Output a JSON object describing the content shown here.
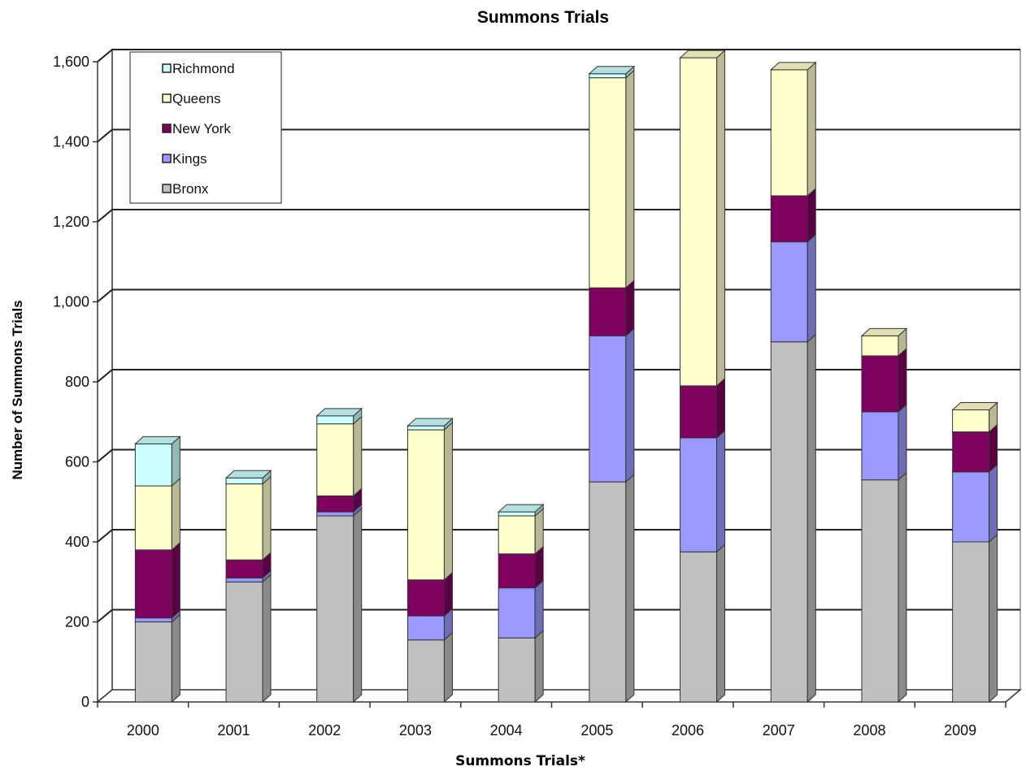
{
  "chart_data": {
    "type": "bar",
    "stacked": true,
    "three_d": true,
    "title": "Summons Trials",
    "xlabel": "Summons Trials*",
    "ylabel": "Number of Summons Trials",
    "categories": [
      "2000",
      "2001",
      "2002",
      "2003",
      "2004",
      "2005",
      "2006",
      "2007",
      "2008",
      "2009"
    ],
    "y_ticks": [
      "0",
      "200",
      "400",
      "600",
      "800",
      "1,000",
      "1,200",
      "1,400",
      "1,600"
    ],
    "ylim": [
      0,
      1600
    ],
    "grid": true,
    "legend_position": "top-left",
    "series": [
      {
        "name": "Bronx",
        "color": "#c0c0c0",
        "values": [
          200,
          300,
          465,
          155,
          160,
          550,
          375,
          900,
          555,
          400
        ]
      },
      {
        "name": "Kings",
        "color": "#9999ff",
        "values": [
          10,
          10,
          10,
          60,
          125,
          365,
          285,
          250,
          170,
          175
        ]
      },
      {
        "name": "New York",
        "color": "#800060",
        "values": [
          170,
          45,
          40,
          90,
          85,
          120,
          130,
          115,
          140,
          100
        ]
      },
      {
        "name": "Queens",
        "color": "#ffffcc",
        "values": [
          160,
          190,
          180,
          375,
          95,
          525,
          820,
          315,
          50,
          55
        ]
      },
      {
        "name": "Richmond",
        "color": "#ccffff",
        "values": [
          105,
          15,
          20,
          10,
          10,
          10,
          0,
          0,
          0,
          0
        ]
      }
    ]
  }
}
